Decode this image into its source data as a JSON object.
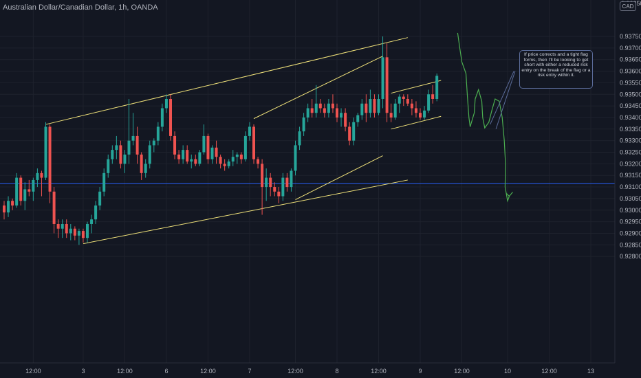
{
  "header": {
    "title": "Australian Dollar/Canadian Dollar, 1h, OANDA"
  },
  "currency_badge": "CAD",
  "top_cut_label": "0.93850",
  "annotation": "If price corrects and a tight flag forms, then I'll be looking to get short with either a reduced risk entry on the break of the flag or a risk entry within it.",
  "colors": {
    "background": "#131722",
    "up": "#26a69a",
    "down": "#ef5350",
    "trendline": "#f0e27a",
    "horizontal_line": "#2962ff",
    "projection": "#4caf50",
    "callout_border": "#5b6c9a"
  },
  "chart_data": {
    "type": "candlestick",
    "title": "Australian Dollar/Canadian Dollar, 1h, OANDA",
    "ylabel": "CAD",
    "ylim": [
      0.9276,
      0.9386
    ],
    "y_ticks": [
      "0.93750",
      "0.93700",
      "0.93650",
      "0.93600",
      "0.93550",
      "0.93500",
      "0.93450",
      "0.93400",
      "0.93350",
      "0.93300",
      "0.93250",
      "0.93200",
      "0.93150",
      "0.93100",
      "0.93050",
      "0.93000",
      "0.92950",
      "0.92900",
      "0.92850",
      "0.92800"
    ],
    "x_ticks": [
      {
        "label": "12:00",
        "index": 7
      },
      {
        "label": "3",
        "index": 19
      },
      {
        "label": "12:00",
        "index": 29
      },
      {
        "label": "6",
        "index": 39
      },
      {
        "label": "12:00",
        "index": 49
      },
      {
        "label": "7",
        "index": 59
      },
      {
        "label": "12:00",
        "index": 70
      },
      {
        "label": "8",
        "index": 80
      },
      {
        "label": "12:00",
        "index": 90
      },
      {
        "label": "9",
        "index": 100
      },
      {
        "label": "12:00",
        "index": 110
      },
      {
        "label": "10",
        "index": 121
      },
      {
        "label": "12:00",
        "index": 131
      },
      {
        "label": "13",
        "index": 141
      }
    ],
    "horizontal_level": 0.93115,
    "candles": [
      [
        0.9302,
        0.9304,
        0.9296,
        0.9299
      ],
      [
        0.9299,
        0.9306,
        0.9297,
        0.9304
      ],
      [
        0.9304,
        0.9305,
        0.93,
        0.9302
      ],
      [
        0.9302,
        0.9316,
        0.9301,
        0.9314
      ],
      [
        0.9314,
        0.9315,
        0.9302,
        0.9304
      ],
      [
        0.9304,
        0.9312,
        0.93,
        0.9309
      ],
      [
        0.9309,
        0.9313,
        0.9306,
        0.9308
      ],
      [
        0.9308,
        0.9314,
        0.9304,
        0.9313
      ],
      [
        0.9313,
        0.9318,
        0.931,
        0.9316
      ],
      [
        0.9316,
        0.9317,
        0.9306,
        0.9314
      ],
      [
        0.9314,
        0.9338,
        0.9313,
        0.9336
      ],
      [
        0.9336,
        0.9337,
        0.9303,
        0.9308
      ],
      [
        0.9308,
        0.931,
        0.929,
        0.9294
      ],
      [
        0.9294,
        0.9296,
        0.9288,
        0.9292
      ],
      [
        0.9292,
        0.9296,
        0.9288,
        0.9294
      ],
      [
        0.9294,
        0.9296,
        0.9288,
        0.929
      ],
      [
        0.929,
        0.9294,
        0.9287,
        0.9292
      ],
      [
        0.9292,
        0.9293,
        0.9287,
        0.9289
      ],
      [
        0.9289,
        0.9292,
        0.9285,
        0.9291
      ],
      [
        0.9291,
        0.9292,
        0.9286,
        0.9288
      ],
      [
        0.9288,
        0.9295,
        0.9286,
        0.9294
      ],
      [
        0.9294,
        0.9298,
        0.929,
        0.9296
      ],
      [
        0.9296,
        0.9304,
        0.9294,
        0.9302
      ],
      [
        0.9302,
        0.931,
        0.93,
        0.9308
      ],
      [
        0.9308,
        0.9318,
        0.9306,
        0.9316
      ],
      [
        0.9316,
        0.9324,
        0.9314,
        0.9322
      ],
      [
        0.9322,
        0.9328,
        0.932,
        0.9326
      ],
      [
        0.9326,
        0.9332,
        0.9322,
        0.9328
      ],
      [
        0.9328,
        0.933,
        0.9318,
        0.932
      ],
      [
        0.932,
        0.9326,
        0.9316,
        0.9324
      ],
      [
        0.9324,
        0.9348,
        0.932,
        0.933
      ],
      [
        0.933,
        0.9342,
        0.9328,
        0.9332
      ],
      [
        0.9332,
        0.9336,
        0.932,
        0.9324
      ],
      [
        0.9324,
        0.9325,
        0.9313,
        0.9316
      ],
      [
        0.9316,
        0.9322,
        0.9314,
        0.932
      ],
      [
        0.932,
        0.933,
        0.9318,
        0.9328
      ],
      [
        0.9328,
        0.9331,
        0.9325,
        0.933
      ],
      [
        0.933,
        0.9338,
        0.9328,
        0.9336
      ],
      [
        0.9336,
        0.9346,
        0.9334,
        0.9344
      ],
      [
        0.9344,
        0.935,
        0.9342,
        0.9348
      ],
      [
        0.9348,
        0.935,
        0.933,
        0.9332
      ],
      [
        0.9332,
        0.9334,
        0.9322,
        0.9324
      ],
      [
        0.9324,
        0.9326,
        0.932,
        0.9322
      ],
      [
        0.9322,
        0.9328,
        0.932,
        0.9326
      ],
      [
        0.9326,
        0.9328,
        0.932,
        0.9321
      ],
      [
        0.9321,
        0.9324,
        0.9318,
        0.9322
      ],
      [
        0.9322,
        0.9324,
        0.9319,
        0.932
      ],
      [
        0.932,
        0.9326,
        0.9319,
        0.9325
      ],
      [
        0.9325,
        0.9337,
        0.9324,
        0.9332
      ],
      [
        0.9332,
        0.9333,
        0.932,
        0.9322
      ],
      [
        0.9322,
        0.9328,
        0.932,
        0.9327
      ],
      [
        0.9327,
        0.933,
        0.932,
        0.9323
      ],
      [
        0.9323,
        0.9324,
        0.9318,
        0.932
      ],
      [
        0.932,
        0.9322,
        0.9317,
        0.9319
      ],
      [
        0.9319,
        0.9322,
        0.9318,
        0.9321
      ],
      [
        0.9321,
        0.9326,
        0.9319,
        0.9323
      ],
      [
        0.9323,
        0.9325,
        0.932,
        0.9324
      ],
      [
        0.9324,
        0.9325,
        0.932,
        0.9322
      ],
      [
        0.9322,
        0.9334,
        0.9321,
        0.9332
      ],
      [
        0.9332,
        0.9338,
        0.933,
        0.9336
      ],
      [
        0.9336,
        0.9337,
        0.932,
        0.9322
      ],
      [
        0.9322,
        0.9323,
        0.9318,
        0.932
      ],
      [
        0.932,
        0.9322,
        0.9298,
        0.931
      ],
      [
        0.931,
        0.9318,
        0.9304,
        0.9314
      ],
      [
        0.9314,
        0.9316,
        0.9306,
        0.931
      ],
      [
        0.931,
        0.9312,
        0.9306,
        0.9308
      ],
      [
        0.9308,
        0.931,
        0.9303,
        0.9306
      ],
      [
        0.9306,
        0.9316,
        0.9304,
        0.9314
      ],
      [
        0.9314,
        0.9316,
        0.9308,
        0.931
      ],
      [
        0.931,
        0.9318,
        0.9308,
        0.9317
      ],
      [
        0.9317,
        0.933,
        0.9315,
        0.9328
      ],
      [
        0.9328,
        0.9336,
        0.9326,
        0.9334
      ],
      [
        0.9334,
        0.9342,
        0.9332,
        0.934
      ],
      [
        0.934,
        0.9346,
        0.9338,
        0.9344
      ],
      [
        0.9344,
        0.9348,
        0.934,
        0.9342
      ],
      [
        0.9342,
        0.9354,
        0.934,
        0.9346
      ],
      [
        0.9346,
        0.9348,
        0.9342,
        0.9344
      ],
      [
        0.9344,
        0.9346,
        0.934,
        0.9342
      ],
      [
        0.9342,
        0.9348,
        0.934,
        0.9346
      ],
      [
        0.9346,
        0.935,
        0.9342,
        0.9344
      ],
      [
        0.9344,
        0.9346,
        0.9338,
        0.934
      ],
      [
        0.934,
        0.9344,
        0.9336,
        0.9342
      ],
      [
        0.9342,
        0.9344,
        0.9334,
        0.9336
      ],
      [
        0.9336,
        0.9338,
        0.9328,
        0.933
      ],
      [
        0.933,
        0.934,
        0.9328,
        0.9338
      ],
      [
        0.9338,
        0.9342,
        0.9336,
        0.9341
      ],
      [
        0.9341,
        0.9348,
        0.9339,
        0.9346
      ],
      [
        0.9346,
        0.935,
        0.9338,
        0.9342
      ],
      [
        0.9342,
        0.9352,
        0.934,
        0.9348
      ],
      [
        0.9348,
        0.935,
        0.934,
        0.9342
      ],
      [
        0.9342,
        0.935,
        0.9341,
        0.9348
      ],
      [
        0.9348,
        0.9375,
        0.9344,
        0.9366
      ],
      [
        0.9366,
        0.9372,
        0.9338,
        0.9342
      ],
      [
        0.9342,
        0.9346,
        0.9338,
        0.934
      ],
      [
        0.934,
        0.9348,
        0.9339,
        0.9346
      ],
      [
        0.9346,
        0.935,
        0.9342,
        0.9349
      ],
      [
        0.9349,
        0.935,
        0.9345,
        0.9348
      ],
      [
        0.9348,
        0.935,
        0.9345,
        0.9346
      ],
      [
        0.9346,
        0.9348,
        0.9341,
        0.9344
      ],
      [
        0.9344,
        0.9347,
        0.934,
        0.9342
      ],
      [
        0.9342,
        0.9344,
        0.9339,
        0.934
      ],
      [
        0.934,
        0.9345,
        0.9339,
        0.9343
      ],
      [
        0.9343,
        0.9352,
        0.9342,
        0.935
      ],
      [
        0.935,
        0.9354,
        0.9346,
        0.9348
      ],
      [
        0.9348,
        0.9359,
        0.9347,
        0.9358
      ]
    ],
    "trendlines": [
      {
        "from": [
          10,
          0.9337
        ],
        "to": [
          97,
          0.93745
        ]
      },
      {
        "from": [
          19,
          0.92855
        ],
        "to": [
          97,
          0.9313
        ]
      },
      {
        "from": [
          60,
          0.93395
        ],
        "to": [
          91,
          0.93665
        ]
      },
      {
        "from": [
          70,
          0.93045
        ],
        "to": [
          91,
          0.93235
        ]
      },
      {
        "from": [
          93,
          0.93505
        ],
        "to": [
          105,
          0.9356
        ]
      },
      {
        "from": [
          93,
          0.9335
        ],
        "to": [
          105,
          0.93405
        ]
      }
    ],
    "projection_path": [
      [
        109,
        0.93765
      ],
      [
        109.5,
        0.937
      ],
      [
        110,
        0.9364
      ],
      [
        111,
        0.9359
      ],
      [
        111.3,
        0.935
      ],
      [
        111.7,
        0.934
      ],
      [
        112,
        0.9336
      ],
      [
        113,
        0.9342
      ],
      [
        113.2,
        0.9348
      ],
      [
        114,
        0.9352
      ],
      [
        114.8,
        0.9347
      ],
      [
        115,
        0.934
      ],
      [
        115.5,
        0.93355
      ],
      [
        116.5,
        0.9338
      ],
      [
        117.2,
        0.9343
      ],
      [
        118,
        0.9348
      ],
      [
        119,
        0.9347
      ],
      [
        119.7,
        0.934
      ],
      [
        120.2,
        0.933
      ],
      [
        120.5,
        0.932
      ],
      [
        120.4,
        0.931
      ],
      [
        121,
        0.9304
      ],
      [
        121.4,
        0.9306
      ]
    ],
    "callout_pointers": [
      [
        [
          122.5,
          0.936
        ],
        [
          116.8,
          0.9337
        ]
      ],
      [
        [
          122.8,
          0.936
        ],
        [
          118.2,
          0.9335
        ]
      ]
    ]
  }
}
